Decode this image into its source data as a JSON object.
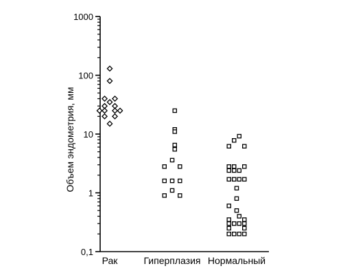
{
  "chart_data": {
    "type": "scatter",
    "title": "",
    "xlabel": "",
    "ylabel": "Объем эндометрия, мм",
    "yscale": "log",
    "ylim": [
      0.1,
      1000
    ],
    "yticks": [
      {
        "value": 0.1,
        "label": "0,1"
      },
      {
        "value": 1,
        "label": "1"
      },
      {
        "value": 10,
        "label": "10"
      },
      {
        "value": 100,
        "label": "100"
      },
      {
        "value": 1000,
        "label": "1000"
      }
    ],
    "grid": false,
    "categories": [
      "Рак",
      "Гиперплазия",
      "Нормальный"
    ],
    "series": [
      {
        "category": "Рак",
        "marker": "diamond",
        "points": [
          {
            "offset": 0,
            "y": 130
          },
          {
            "offset": 0,
            "y": 80
          },
          {
            "offset": -1,
            "y": 40
          },
          {
            "offset": 1,
            "y": 40
          },
          {
            "offset": 0,
            "y": 35
          },
          {
            "offset": -1,
            "y": 30
          },
          {
            "offset": 1,
            "y": 30
          },
          {
            "offset": -2,
            "y": 25
          },
          {
            "offset": -1,
            "y": 25
          },
          {
            "offset": 1,
            "y": 25
          },
          {
            "offset": 2,
            "y": 25
          },
          {
            "offset": -1,
            "y": 20
          },
          {
            "offset": 1,
            "y": 20
          },
          {
            "offset": 0,
            "y": 15
          }
        ]
      },
      {
        "category": "Гиперплазия",
        "marker": "square",
        "points": [
          {
            "offset": 0.5,
            "y": 25
          },
          {
            "offset": 0.5,
            "y": 12
          },
          {
            "offset": 0.5,
            "y": 11
          },
          {
            "offset": 0.5,
            "y": 6.5
          },
          {
            "offset": 0.5,
            "y": 5.5
          },
          {
            "offset": 0,
            "y": 3.6
          },
          {
            "offset": -1.5,
            "y": 2.8
          },
          {
            "offset": 1.5,
            "y": 2.8
          },
          {
            "offset": -1.5,
            "y": 1.6
          },
          {
            "offset": 0,
            "y": 1.6
          },
          {
            "offset": 1.5,
            "y": 1.6
          },
          {
            "offset": 0,
            "y": 1.1
          },
          {
            "offset": -1.5,
            "y": 0.9
          },
          {
            "offset": 1.5,
            "y": 0.9
          }
        ]
      },
      {
        "category": "Нормальный",
        "marker": "square",
        "points": [
          {
            "offset": 0.5,
            "y": 9.2
          },
          {
            "offset": -0.5,
            "y": 7.8
          },
          {
            "offset": -1.5,
            "y": 6.2
          },
          {
            "offset": 1.5,
            "y": 6.2
          },
          {
            "offset": -1.5,
            "y": 2.8
          },
          {
            "offset": -0.5,
            "y": 2.8
          },
          {
            "offset": 1.5,
            "y": 2.8
          },
          {
            "offset": -1.5,
            "y": 2.4
          },
          {
            "offset": -0.5,
            "y": 2.4
          },
          {
            "offset": 0.5,
            "y": 2.4
          },
          {
            "offset": -1.5,
            "y": 1.7
          },
          {
            "offset": -0.5,
            "y": 1.7
          },
          {
            "offset": 0.5,
            "y": 1.7
          },
          {
            "offset": 1.5,
            "y": 1.7
          },
          {
            "offset": 0,
            "y": 1.2
          },
          {
            "offset": 0,
            "y": 0.8
          },
          {
            "offset": -1.5,
            "y": 0.6
          },
          {
            "offset": 0,
            "y": 0.5
          },
          {
            "offset": 0.5,
            "y": 0.4
          },
          {
            "offset": -1.5,
            "y": 0.35
          },
          {
            "offset": 1.5,
            "y": 0.35
          },
          {
            "offset": -1.5,
            "y": 0.3
          },
          {
            "offset": -0.5,
            "y": 0.3
          },
          {
            "offset": 0.5,
            "y": 0.3
          },
          {
            "offset": 1.5,
            "y": 0.3
          },
          {
            "offset": -1.5,
            "y": 0.25
          },
          {
            "offset": 1.5,
            "y": 0.25
          },
          {
            "offset": -1.5,
            "y": 0.2
          },
          {
            "offset": -0.5,
            "y": 0.2
          },
          {
            "offset": 0.5,
            "y": 0.2
          },
          {
            "offset": 1.5,
            "y": 0.2
          }
        ]
      }
    ]
  }
}
